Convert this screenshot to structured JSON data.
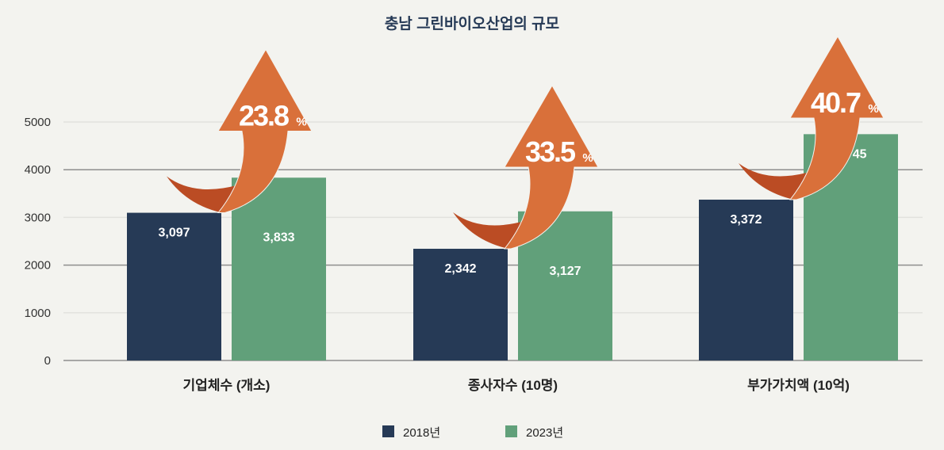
{
  "chart_data": {
    "type": "bar",
    "title": "충남 그린바이오산업의 규모",
    "categories": [
      "기업체수 (개소)",
      "종사자수 (10명)",
      "부가가치액 (10억)"
    ],
    "series": [
      {
        "name": "2018년",
        "values": [
          3097,
          2342,
          3372
        ],
        "labels": [
          "3,097",
          "2,342",
          "3,372"
        ],
        "color": "#263a56"
      },
      {
        "name": "2023년",
        "values": [
          3833,
          3127,
          4745
        ],
        "labels": [
          "3,833",
          "3,127",
          "4,745"
        ],
        "color": "#61a07a"
      }
    ],
    "growth": [
      "23.8",
      "33.5",
      "40.7"
    ],
    "growth_unit": "%",
    "arrow_colors": {
      "body": "#d9703a",
      "tail": "#bb4c24"
    },
    "ylim": [
      0,
      5000
    ],
    "yticks": [
      0,
      1000,
      2000,
      3000,
      4000,
      5000
    ],
    "grid": true,
    "legend": "bottom"
  }
}
